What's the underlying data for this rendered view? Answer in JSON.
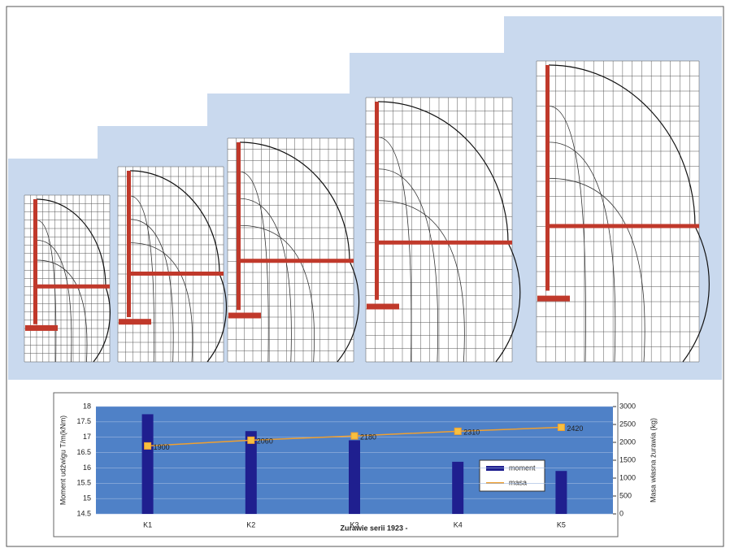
{
  "chart_data": {
    "type": "bar-line",
    "x_label": "Zurawie serii 1923 -",
    "y_label": "Moment udźwigu T/m(kNm)",
    "y2_label": "Masa własna żurawia (kg)",
    "categories": [
      "K1",
      "K2",
      "K3",
      "K4",
      "K5"
    ],
    "series": [
      {
        "name": "moment",
        "color": "#1f1f8f",
        "type": "bar",
        "values": [
          17.75,
          17.2,
          16.9,
          16.2,
          15.9
        ]
      },
      {
        "name": "masa",
        "color": "#f0a030",
        "type": "line",
        "axis": "y2",
        "values": [
          1900,
          2060,
          2180,
          2310,
          2420
        ]
      }
    ],
    "ylim": [
      14.5,
      18
    ],
    "yticks": [
      14.5,
      15,
      15.5,
      16,
      16.5,
      17,
      17.5,
      18
    ],
    "y2lim": [
      0,
      3000
    ],
    "y2ticks": [
      0,
      500,
      1000,
      1500,
      2000,
      2500,
      3000
    ],
    "grid": true
  }
}
